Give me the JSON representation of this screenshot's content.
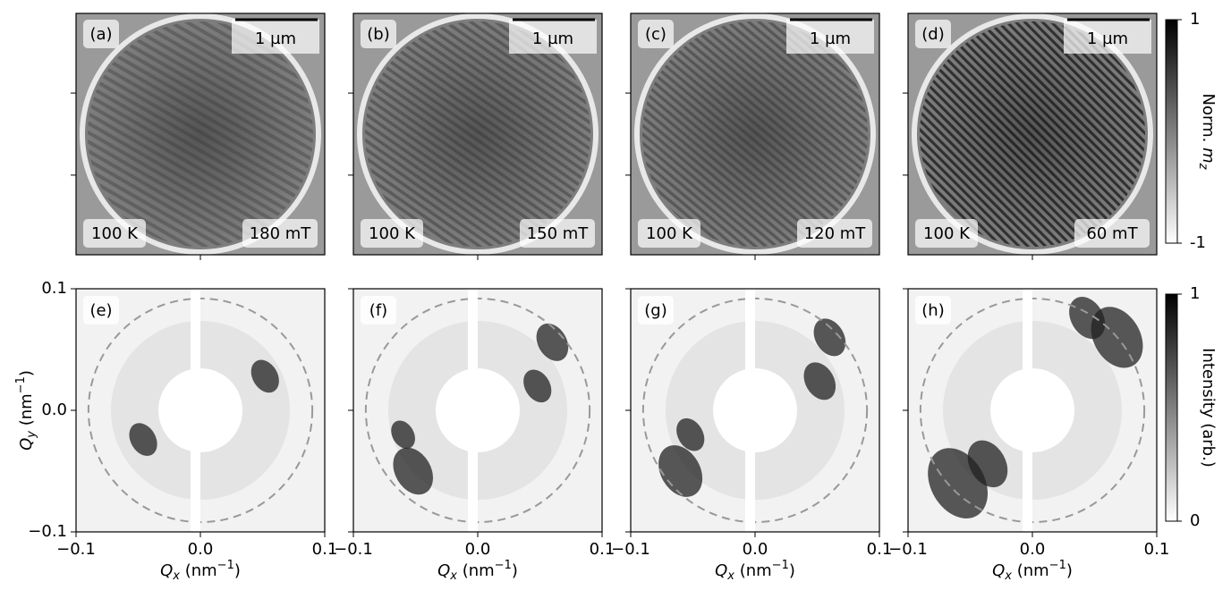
{
  "figure": {
    "top_panels": [
      {
        "label": "(a)",
        "temperature": "100 K",
        "field": "180 mT",
        "scalebar": "1 µm"
      },
      {
        "label": "(b)",
        "temperature": "100 K",
        "field": "150 mT",
        "scalebar": "1 µm"
      },
      {
        "label": "(c)",
        "temperature": "100 K",
        "field": "120 mT",
        "scalebar": "1 µm"
      },
      {
        "label": "(d)",
        "temperature": "100 K",
        "field": "60 mT",
        "scalebar": "1 µm"
      }
    ],
    "bottom_panels": [
      {
        "label": "(e)"
      },
      {
        "label": "(f)"
      },
      {
        "label": "(g)"
      },
      {
        "label": "(h)"
      }
    ],
    "qx_lim": [
      -0.1,
      0.1
    ],
    "qx_ticks": [
      {
        "value": -0.1,
        "label": "−0.1"
      },
      {
        "value": 0,
        "label": "0.0"
      },
      0.1
    ],
    "qy_lim": [
      -0.1,
      0.1
    ],
    "qy_ticks": [
      {
        "value": -0.1,
        "label": "−0.1"
      },
      {
        "value": 0,
        "label": "0.0"
      },
      0.1
    ],
    "xlabel_parts": [
      "Q",
      "x",
      " (nm",
      "−1",
      ")"
    ],
    "ylabel_parts": [
      "Q",
      "y",
      " (nm",
      "−1",
      ")"
    ],
    "top_colorbar": {
      "label_parts": [
        "Norm. ",
        "m",
        "z"
      ],
      "lim": [
        -1,
        1
      ],
      "ticks": [
        1,
        -1
      ]
    },
    "bottom_colorbar": {
      "label": "Intensity (arb.)",
      "lim": [
        0,
        1
      ],
      "ticks": [
        1,
        0
      ]
    }
  }
}
